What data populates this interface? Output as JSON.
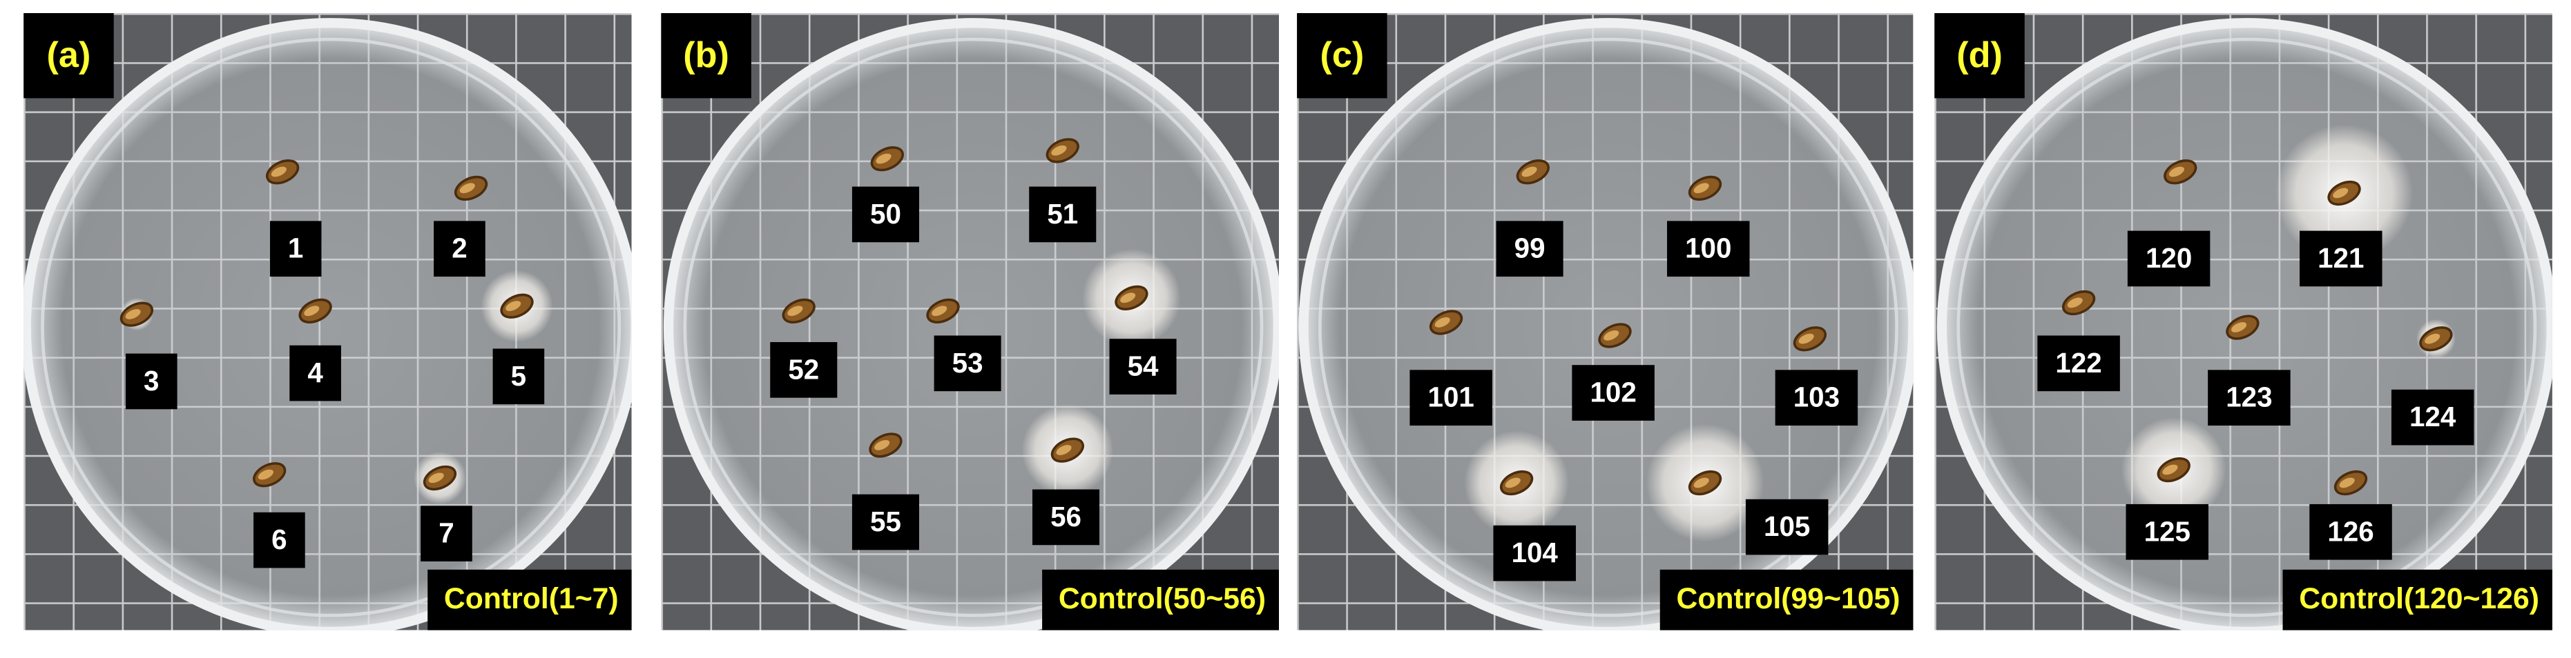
{
  "panels": [
    {
      "label": "(a)",
      "caption": "Control(1~7)",
      "seeds": [
        "1",
        "2",
        "3",
        "4",
        "5",
        "6",
        "7"
      ]
    },
    {
      "label": "(b)",
      "caption": "Control(50~56)",
      "seeds": [
        "50",
        "51",
        "52",
        "53",
        "54",
        "55",
        "56"
      ]
    },
    {
      "label": "(c)",
      "caption": "Control(99~105)",
      "seeds": [
        "99",
        "100",
        "101",
        "102",
        "103",
        "104",
        "105"
      ]
    },
    {
      "label": "(d)",
      "caption": "Control(120~126)",
      "seeds": [
        "120",
        "121",
        "122",
        "123",
        "124",
        "125",
        "126"
      ]
    }
  ]
}
